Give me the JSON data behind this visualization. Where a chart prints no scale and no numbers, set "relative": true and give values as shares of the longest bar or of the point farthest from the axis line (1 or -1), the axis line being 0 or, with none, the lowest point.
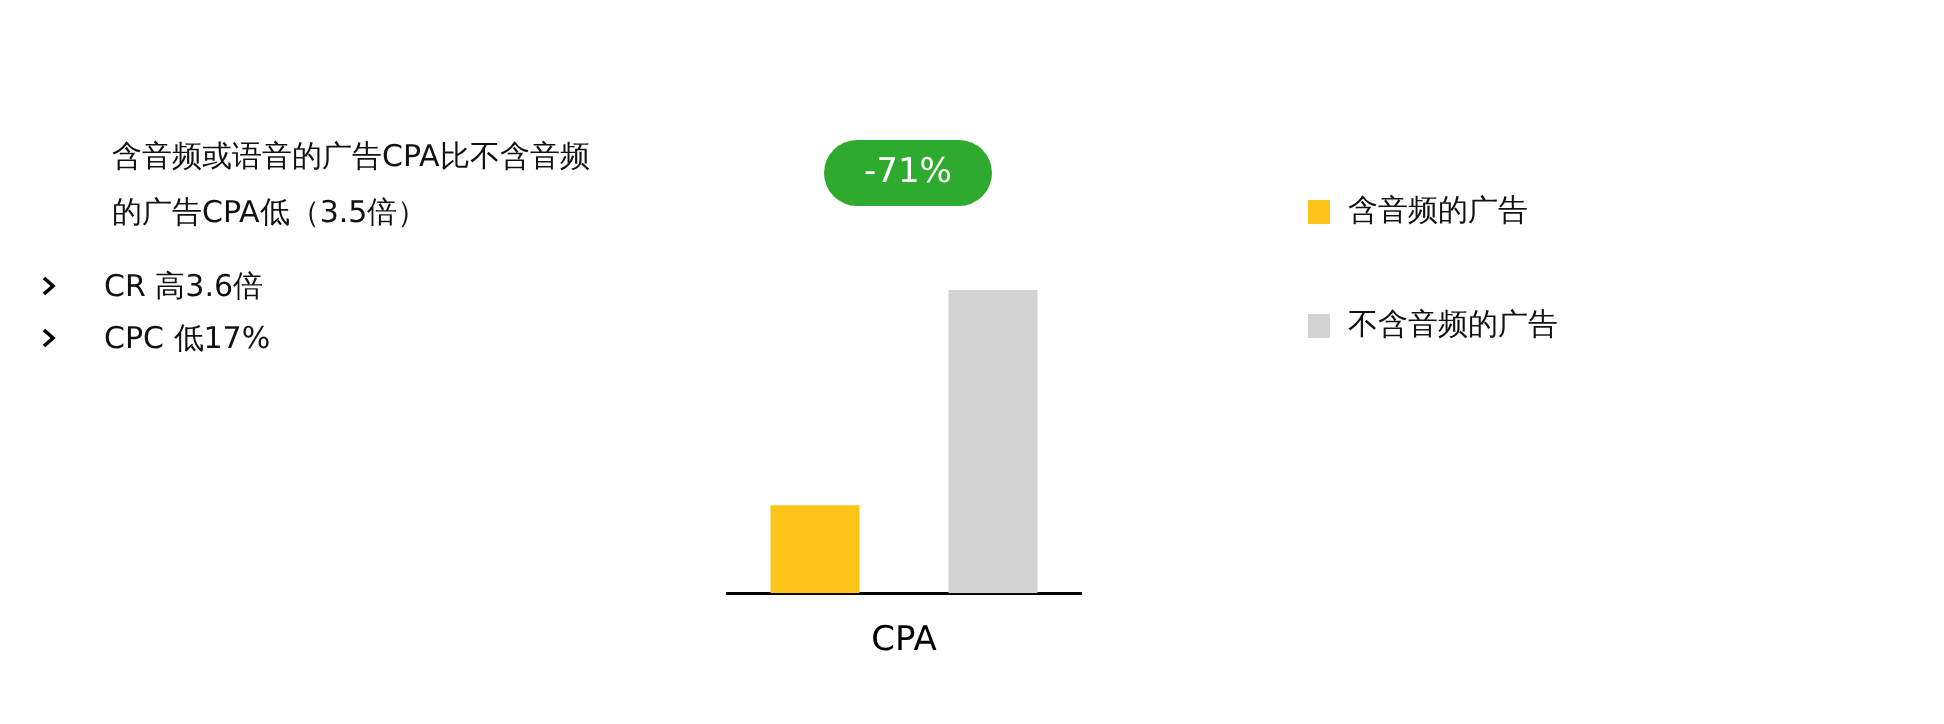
{
  "chart_data": {
    "type": "bar",
    "relative": true,
    "categories": [
      "CPA"
    ],
    "series": [
      {
        "name": "含音频的广告",
        "color": "#fcc419",
        "values": [
          0.29
        ]
      },
      {
        "name": "不含音频的广告",
        "color": "#d3d3d3",
        "values": [
          1
        ]
      }
    ],
    "legend": "right",
    "grid": false,
    "annotations": [
      "含音频或语音的广告CPA比不含音频的广告CPA低（3.5倍）",
      "CR 高3.6倍",
      "CPC 低17%",
      "-71%"
    ]
  }
}
